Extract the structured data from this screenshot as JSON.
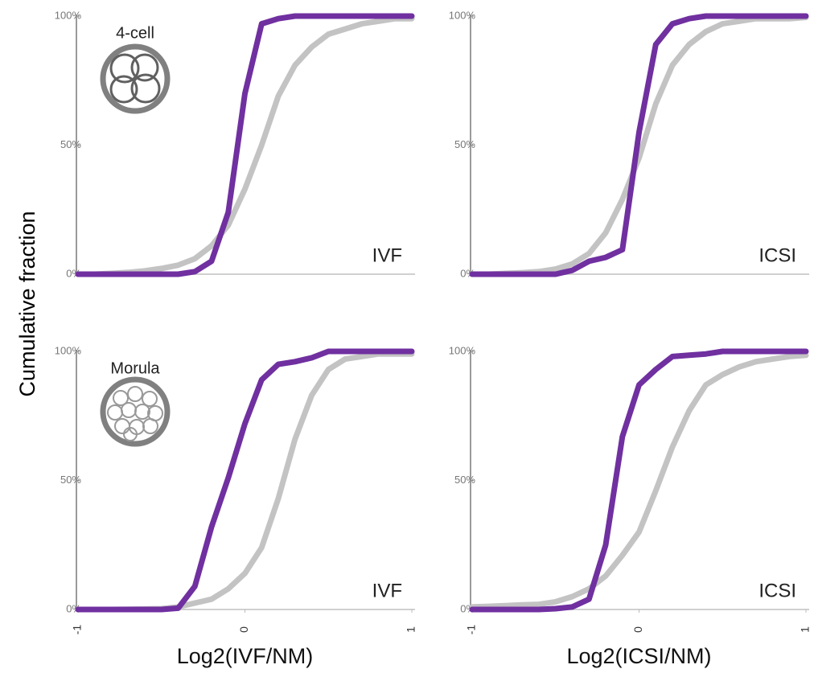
{
  "ylabel": "Cumulative fraction",
  "chart_data": [
    {
      "type": "line",
      "stage": "4-cell",
      "label": "IVF",
      "x": [
        -1,
        -0.9,
        -0.8,
        -0.7,
        -0.6,
        -0.5,
        -0.4,
        -0.3,
        -0.2,
        -0.1,
        0,
        0.1,
        0.2,
        0.3,
        0.4,
        0.5,
        0.6,
        0.7,
        0.8,
        0.9,
        1
      ],
      "xlim": [
        -1,
        1
      ],
      "ylim": [
        0,
        100
      ],
      "yticks": [
        {
          "value": 0,
          "label": "0%"
        },
        {
          "value": 50,
          "label": "50%"
        },
        {
          "value": 100,
          "label": "100%"
        }
      ],
      "series": [
        {
          "color": "#7030a0",
          "values": [
            0,
            0,
            0,
            0,
            0,
            0,
            0,
            1,
            5,
            24,
            70,
            97,
            99,
            100,
            100,
            100,
            100,
            100,
            100,
            100,
            100
          ]
        },
        {
          "color": "#c3c3c3",
          "values": [
            0,
            0,
            0.3,
            0.7,
            1.3,
            2.2,
            3.5,
            6,
            11,
            19,
            33,
            50,
            69,
            81,
            88,
            93,
            95,
            97,
            98,
            99,
            99
          ]
        }
      ]
    },
    {
      "type": "line",
      "label": "ICSI",
      "x": [
        -1,
        -0.9,
        -0.8,
        -0.7,
        -0.6,
        -0.5,
        -0.4,
        -0.3,
        -0.2,
        -0.1,
        0,
        0.1,
        0.2,
        0.3,
        0.4,
        0.5,
        0.6,
        0.7,
        0.8,
        0.9,
        1
      ],
      "xlim": [
        -1,
        1
      ],
      "ylim": [
        0,
        100
      ],
      "yticks": [
        {
          "value": 0,
          "label": "0%"
        },
        {
          "value": 50,
          "label": "50%"
        },
        {
          "value": 100,
          "label": "100%"
        }
      ],
      "series": [
        {
          "color": "#7030a0",
          "values": [
            0,
            0,
            0,
            0,
            0,
            0,
            1.5,
            5,
            6.5,
            9.5,
            55,
            89,
            97,
            99,
            100,
            100,
            100,
            100,
            100,
            100,
            100
          ]
        },
        {
          "color": "#c3c3c3",
          "values": [
            0,
            0,
            0.3,
            0.6,
            1,
            2,
            4,
            8,
            16,
            29,
            45,
            66,
            81,
            89,
            94,
            97,
            98,
            99,
            99,
            99,
            99.5
          ]
        }
      ]
    },
    {
      "type": "line",
      "stage": "Morula",
      "label": "IVF",
      "xlabel": "Log2(IVF/NM)",
      "x": [
        -1,
        -0.9,
        -0.8,
        -0.7,
        -0.6,
        -0.5,
        -0.4,
        -0.3,
        -0.2,
        -0.1,
        0,
        0.1,
        0.2,
        0.3,
        0.4,
        0.5,
        0.6,
        0.7,
        0.8,
        0.9,
        1
      ],
      "xlim": [
        -1,
        1
      ],
      "ylim": [
        0,
        100
      ],
      "xticks": [
        -1,
        0,
        1
      ],
      "yticks": [
        {
          "value": 0,
          "label": "0%"
        },
        {
          "value": 50,
          "label": "50%"
        },
        {
          "value": 100,
          "label": "100%"
        }
      ],
      "series": [
        {
          "color": "#7030a0",
          "values": [
            0,
            0,
            0,
            0,
            0,
            0,
            0.5,
            9,
            32,
            51,
            72,
            89,
            95,
            96,
            97.5,
            100,
            100,
            100,
            100,
            100,
            100
          ]
        },
        {
          "color": "#c3c3c3",
          "values": [
            0,
            0,
            0,
            0.1,
            0.2,
            0.3,
            1,
            2.5,
            4,
            8,
            14,
            24,
            43,
            66,
            83,
            93,
            97,
            98,
            99,
            99,
            99
          ]
        }
      ]
    },
    {
      "type": "line",
      "label": "ICSI",
      "xlabel": "Log2(ICSI/NM)",
      "x": [
        -1,
        -0.9,
        -0.8,
        -0.7,
        -0.6,
        -0.5,
        -0.4,
        -0.3,
        -0.2,
        -0.1,
        0,
        0.1,
        0.2,
        0.3,
        0.4,
        0.5,
        0.6,
        0.7,
        0.8,
        0.9,
        1
      ],
      "xlim": [
        -1,
        1
      ],
      "ylim": [
        0,
        100
      ],
      "xticks": [
        -1,
        0,
        1
      ],
      "yticks": [
        {
          "value": 0,
          "label": "0%"
        },
        {
          "value": 50,
          "label": "50%"
        },
        {
          "value": 100,
          "label": "100%"
        }
      ],
      "series": [
        {
          "color": "#7030a0",
          "values": [
            0,
            0,
            0,
            0,
            0,
            0.3,
            1,
            4,
            25,
            67,
            87,
            93,
            98,
            98.5,
            99,
            100,
            100,
            100,
            100,
            100,
            100
          ]
        },
        {
          "color": "#c3c3c3",
          "values": [
            1,
            1.2,
            1.5,
            1.8,
            2,
            3,
            5,
            8,
            13,
            21,
            30,
            46,
            63,
            77,
            87,
            91,
            94,
            96,
            97,
            98,
            98.5
          ]
        }
      ]
    }
  ]
}
